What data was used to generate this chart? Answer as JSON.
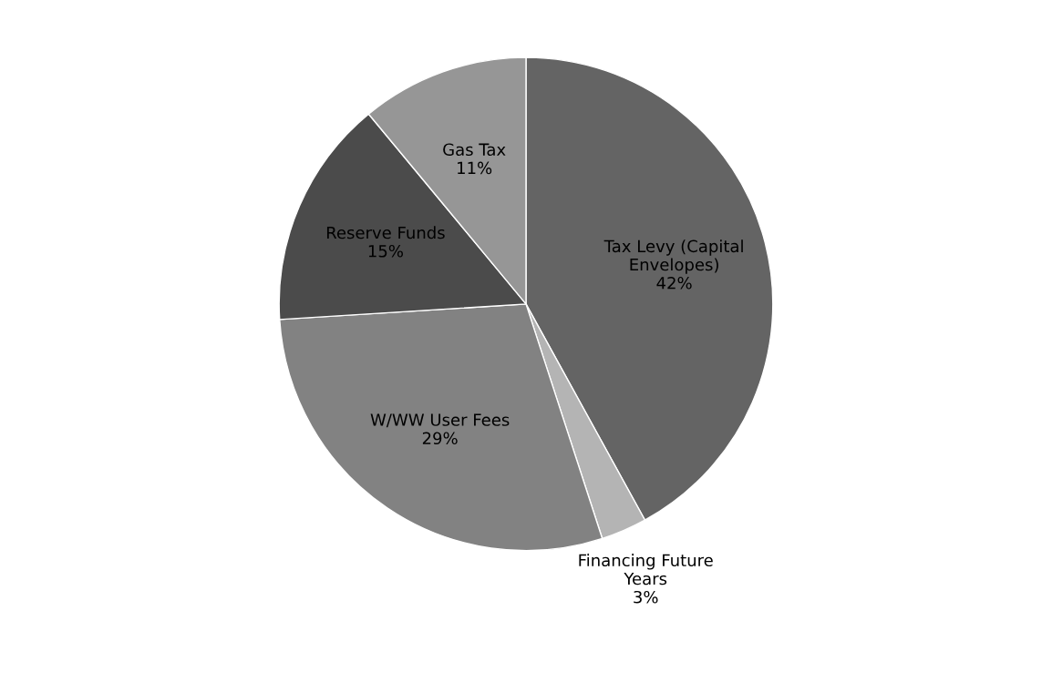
{
  "chart_data": {
    "type": "pie",
    "categories": [
      "Tax Levy (Capital Envelopes)",
      "Financing Future Years",
      "W/WW User Fees",
      "Reserve Funds",
      "Gas Tax"
    ],
    "values": [
      42,
      3,
      29,
      15,
      11
    ],
    "value_labels": [
      "42%",
      "3%",
      "29%",
      "15%",
      "11%"
    ],
    "colors": [
      "#646464",
      "#b4b4b4",
      "#828282",
      "#4b4b4b",
      "#969696"
    ],
    "legend": false
  }
}
